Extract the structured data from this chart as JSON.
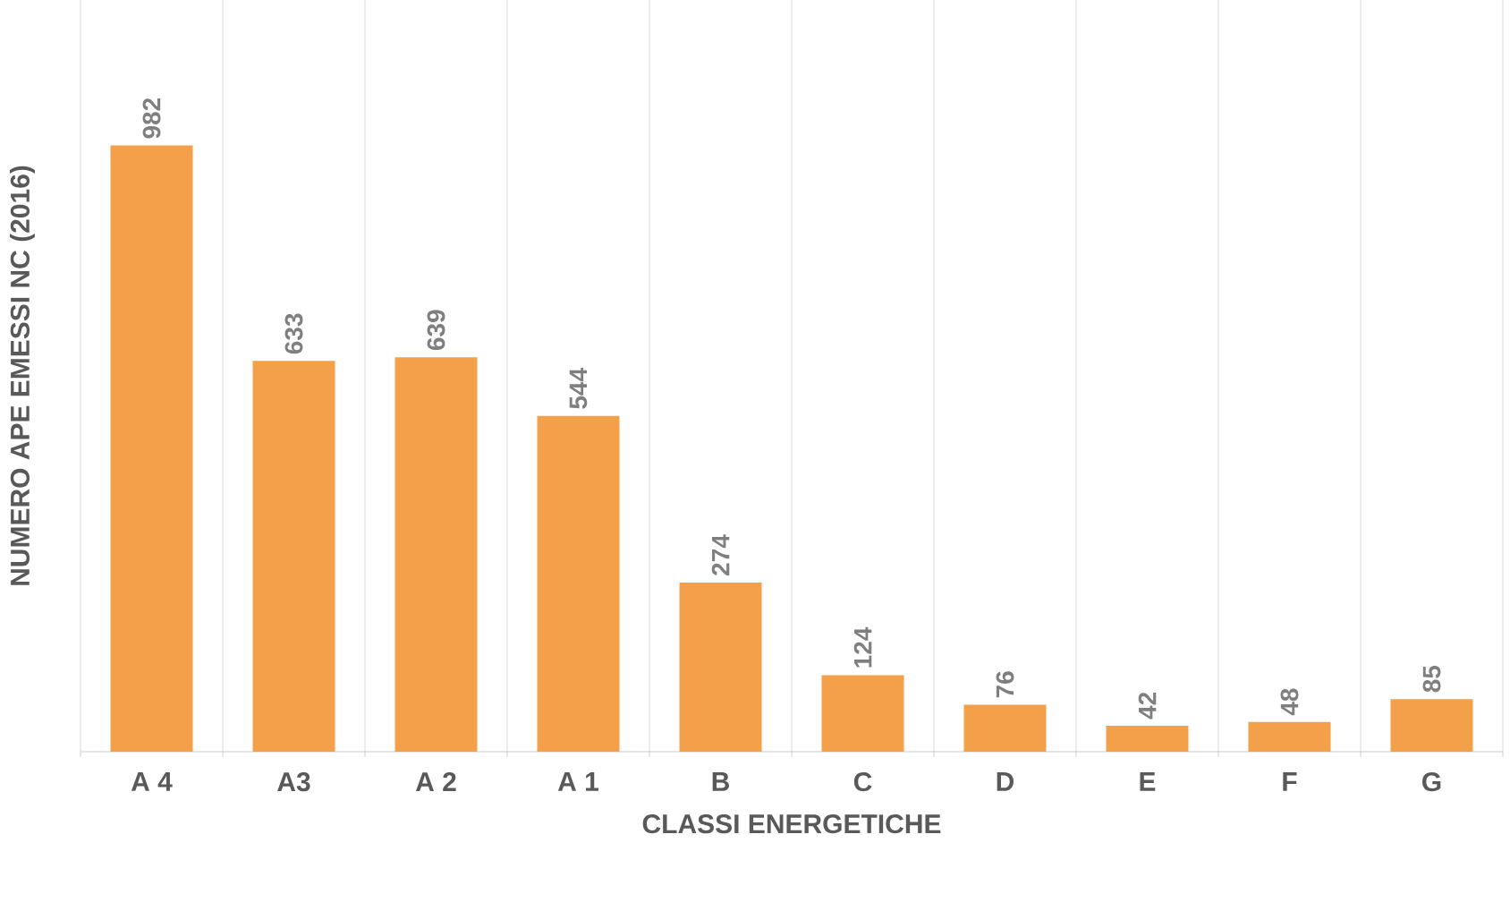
{
  "chart_data": {
    "type": "bar",
    "xlabel": "CLASSI ENERGETICHE",
    "ylabel": "NUMERO APE EMESSI NC (2016)",
    "categories": [
      "A 4",
      "A3",
      "A 2",
      "A 1",
      "B",
      "C",
      "D",
      "E",
      "F",
      "G"
    ],
    "values": [
      982,
      633,
      639,
      544,
      274,
      124,
      76,
      42,
      48,
      85
    ],
    "color": "#f4a04a",
    "data_labels": true,
    "grid": "x"
  }
}
